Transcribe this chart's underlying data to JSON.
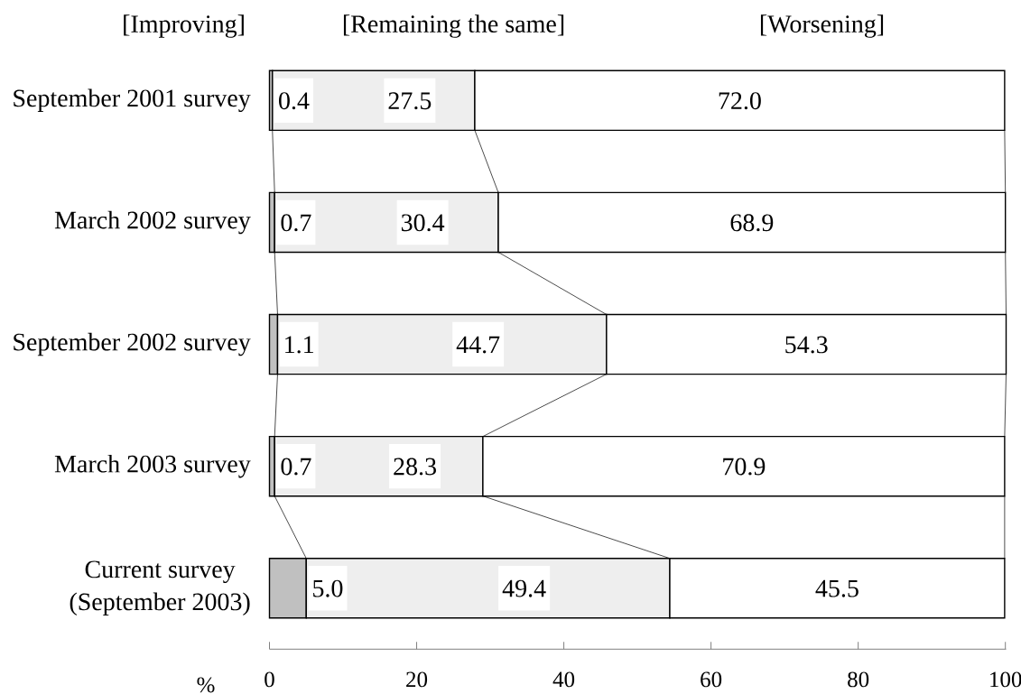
{
  "chart_data": {
    "type": "bar",
    "orientation": "horizontal",
    "stacked": true,
    "categories": [
      "September 2001 survey",
      "March 2002 survey",
      "September 2002 survey",
      "March 2003 survey",
      "Current survey (September 2003)"
    ],
    "series": [
      {
        "name": "[Improving]",
        "color": "#c0c0c0",
        "values": [
          0.4,
          0.7,
          1.1,
          0.7,
          5.0
        ],
        "value_labels": [
          "0.4",
          "0.7",
          "1.1",
          "0.7",
          "5.0"
        ]
      },
      {
        "name": "[Remaining the same]",
        "color": "#eeeeee",
        "values": [
          27.5,
          30.4,
          44.7,
          28.3,
          49.4
        ],
        "value_labels": [
          "27.5",
          "30.4",
          "44.7",
          "28.3",
          "49.4"
        ]
      },
      {
        "name": "[Worsening]",
        "color": "#ffffff",
        "values": [
          72.0,
          68.9,
          54.3,
          70.9,
          45.5
        ],
        "value_labels": [
          "72.0",
          "68.9",
          "54.3",
          "70.9",
          "45.5"
        ]
      }
    ],
    "xlabel": "%",
    "xlim": [
      0,
      100.1
    ],
    "xticks": [
      0,
      20,
      40,
      60,
      80,
      100
    ]
  }
}
